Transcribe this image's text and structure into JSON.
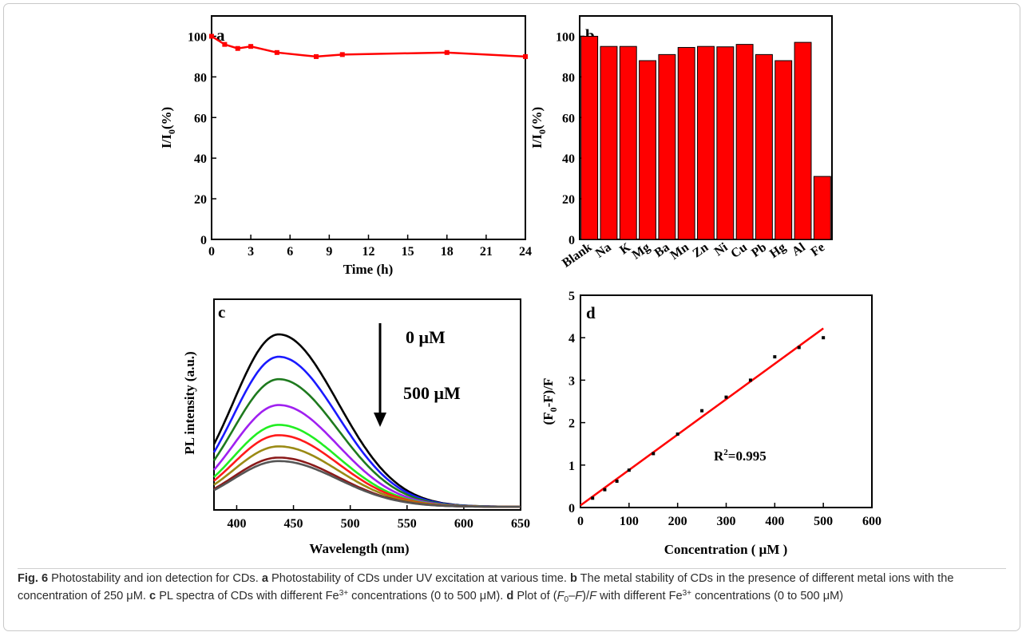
{
  "figure": {
    "caption": {
      "fig_label": "Fig. 6",
      "title": "Photostability and ion detection for CDs.",
      "part_a_label": "a",
      "part_a_text": "Photostability of CDs under UV excitation at various time.",
      "part_b_label": "b",
      "part_b_text": "The metal stability of CDs in the presence of different metal ions with the concentration of 250 μM.",
      "part_c_label": "c",
      "part_c_text_1": "PL spectra of CDs with different Fe",
      "part_c_sup": "3+",
      "part_c_text_2": "concentrations (0 to 500 μM).",
      "part_d_label": "d",
      "part_d_text_1": "Plot of (",
      "part_d_F": "F",
      "part_d_sub": "0",
      "part_d_text_2": "–",
      "part_d_F2": "F",
      "part_d_text_3": ")/",
      "part_d_F3": "F",
      "part_d_text_4": "with different Fe",
      "part_d_sup": "3+",
      "part_d_text_5": "concentrations (0 to 500 μM)"
    }
  },
  "chart_data": [
    {
      "panel": "a",
      "type": "line",
      "xlabel": "Time (h)",
      "ylabel_main": "I/I",
      "ylabel_sub": "0",
      "ylabel_tail": "(%)",
      "xlim": [
        0,
        24
      ],
      "ylim": [
        0,
        110
      ],
      "xticks": [
        0,
        3,
        6,
        9,
        12,
        15,
        18,
        21,
        24
      ],
      "yticks": [
        0,
        20,
        40,
        60,
        80,
        100
      ],
      "color": "#ff0000",
      "x": [
        0,
        1,
        2,
        3,
        5,
        8,
        10,
        18,
        24
      ],
      "y": [
        100,
        96,
        94,
        95,
        92,
        90,
        91,
        92,
        90
      ]
    },
    {
      "panel": "b",
      "type": "bar",
      "ylabel_main": "I/I",
      "ylabel_sub": "0",
      "ylabel_tail": "(%)",
      "ylim": [
        0,
        110
      ],
      "yticks": [
        0,
        20,
        40,
        60,
        80,
        100
      ],
      "color": "#ff0000",
      "categories": [
        "Blank",
        "Na",
        "K",
        "Mg",
        "Ba",
        "Mn",
        "Zn",
        "Ni",
        "Cu",
        "Pb",
        "Hg",
        "Al",
        "Fe"
      ],
      "values": [
        100,
        95,
        95,
        88,
        91,
        94.5,
        95,
        94.8,
        96,
        91,
        88,
        97,
        31
      ]
    },
    {
      "panel": "c",
      "type": "line",
      "xlabel": "Wavelength (nm)",
      "ylabel": "PL intensity (a.u.)",
      "xlim": [
        380,
        650
      ],
      "xticks": [
        400,
        450,
        500,
        550,
        600,
        650
      ],
      "peak_nm": 437,
      "annotation_top": "0 μM",
      "annotation_bottom": "500 μM",
      "series": [
        {
          "color": "#000000",
          "peak": 1.0
        },
        {
          "color": "#1a1aff",
          "peak": 0.87
        },
        {
          "color": "#1e7a1e",
          "peak": 0.74
        },
        {
          "color": "#a020f0",
          "peak": 0.59
        },
        {
          "color": "#22ee22",
          "peak": 0.475
        },
        {
          "color": "#ff1a1a",
          "peak": 0.415
        },
        {
          "color": "#9a8a14",
          "peak": 0.35
        },
        {
          "color": "#8a1a1a",
          "peak": 0.285
        },
        {
          "color": "#555555",
          "peak": 0.265
        }
      ]
    },
    {
      "panel": "d",
      "type": "scatter",
      "xlabel": "Concentration ( μM )",
      "ylabel_open": "(F",
      "ylabel_sub": "0",
      "ylabel_tail": "-F)/F",
      "xlim": [
        0,
        600
      ],
      "ylim": [
        0,
        5
      ],
      "xticks": [
        0,
        100,
        200,
        300,
        400,
        500,
        600
      ],
      "yticks": [
        0,
        1,
        2,
        3,
        4,
        5
      ],
      "annotation_main": "R",
      "annotation_sup": "2",
      "annotation_tail": "=0.995",
      "fit": {
        "color": "#ff0000",
        "x": [
          0,
          500
        ],
        "y": [
          0.05,
          4.22
        ]
      },
      "x": [
        25,
        50,
        75,
        100,
        150,
        200,
        250,
        300,
        350,
        400,
        450,
        500
      ],
      "y": [
        0.22,
        0.42,
        0.62,
        0.88,
        1.27,
        1.73,
        2.28,
        2.6,
        3.0,
        3.55,
        3.77,
        4.0
      ]
    }
  ]
}
